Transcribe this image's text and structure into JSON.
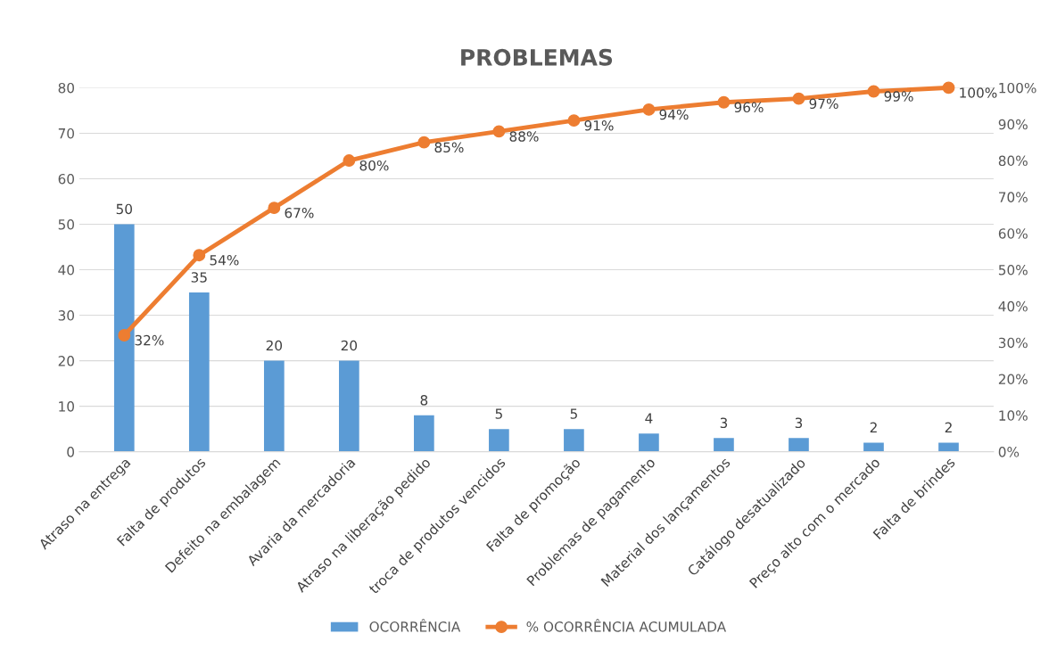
{
  "chart_data": {
    "type": "bar",
    "title": "PROBLEMAS",
    "categories": [
      "Atraso na entrega",
      "Falta de produtos",
      "Defeito na embalagem",
      "Avaria da mercadoria",
      "Atraso na liberação pedido",
      "troca de produtos vencidos",
      "Falta de promoção",
      "Problemas de pagamento",
      "Material dos lançamentos",
      "Catálogo desatualizado",
      "Preço alto com o mercado",
      "Falta de brindes"
    ],
    "series": [
      {
        "name": "OCORRÊNCIA",
        "color": "#5b9bd5",
        "values": [
          50,
          35,
          20,
          20,
          8,
          5,
          5,
          4,
          3,
          3,
          2,
          2
        ],
        "value_labels": [
          "50",
          "35",
          "20",
          "20",
          "8",
          "5",
          "5",
          "4",
          "3",
          "3",
          "2",
          "2"
        ]
      },
      {
        "name": "% OCORRÊNCIA ACUMULADA",
        "type": "line",
        "axis": "y2",
        "color": "#ed7d31",
        "marker": "circle",
        "line_style": "solid",
        "values": [
          32,
          54,
          67,
          80,
          85,
          88,
          91,
          94,
          96,
          97,
          99,
          100
        ],
        "value_labels": [
          "32%",
          "54%",
          "67%",
          "80%",
          "85%",
          "88%",
          "91%",
          "94%",
          "96%",
          "97%",
          "99%",
          "100%"
        ]
      }
    ],
    "ylim": [
      0,
      80
    ],
    "yticks": [
      0,
      10,
      20,
      30,
      40,
      50,
      60,
      70,
      80
    ],
    "y2lim": [
      0,
      100
    ],
    "y2ticks": [
      {
        "value": 0,
        "label": "0%"
      },
      {
        "value": 10,
        "label": "10%"
      },
      {
        "value": 20,
        "label": "20%"
      },
      {
        "value": 30,
        "label": "30%"
      },
      {
        "value": 40,
        "label": "40%"
      },
      {
        "value": 50,
        "label": "50%"
      },
      {
        "value": 60,
        "label": "60%"
      },
      {
        "value": 70,
        "label": "70%"
      },
      {
        "value": 80,
        "label": "80%"
      },
      {
        "value": 90,
        "label": "90%"
      },
      {
        "value": 100,
        "label": "100%"
      }
    ],
    "grid": "y",
    "legend": "bottom"
  }
}
